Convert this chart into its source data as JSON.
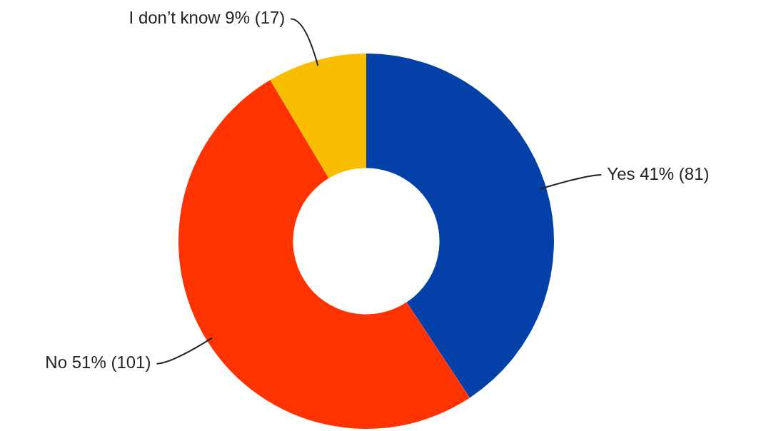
{
  "chart_data": {
    "type": "donut",
    "categories": [
      "Yes",
      "No",
      "I don’t know"
    ],
    "values": [
      81,
      101,
      17
    ],
    "value_labels": [
      "41% (81)",
      "51% (101)",
      "9% (17)"
    ],
    "colors": [
      "#0341a8",
      "#ff3300",
      "#f9be00"
    ],
    "legend": false
  }
}
